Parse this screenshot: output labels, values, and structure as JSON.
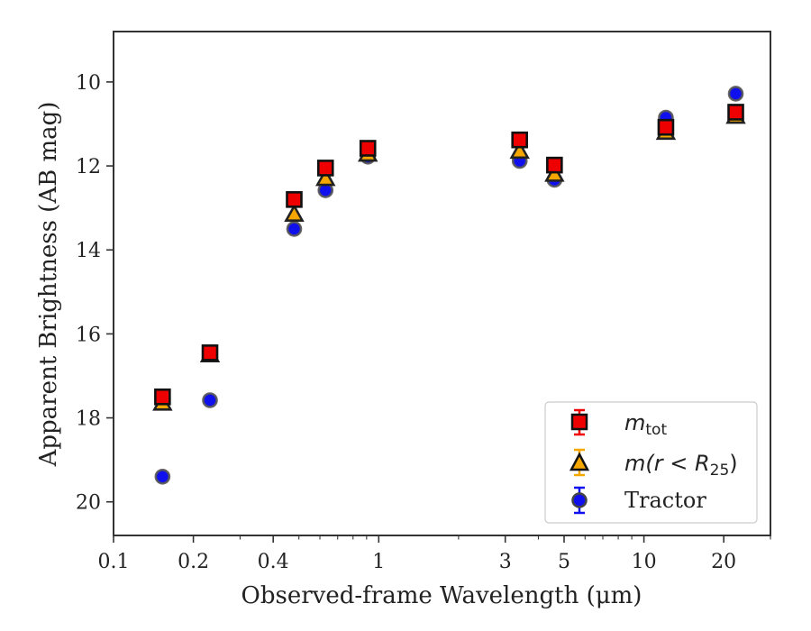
{
  "chart_data": {
    "type": "scatter",
    "title": "",
    "xlabel": "Observed-frame Wavelength (μm)",
    "ylabel": "Apparent Brightness (AB mag)",
    "xscale": "log",
    "xlim": [
      0.1,
      30
    ],
    "ylim": [
      20.8,
      8.8
    ],
    "y_inverted": true,
    "x_ticks": [
      0.1,
      0.2,
      0.4,
      1,
      3,
      5,
      10,
      20
    ],
    "x_tick_labels": [
      "0.1",
      "0.2",
      "0.4",
      "1",
      "3",
      "5",
      "10",
      "20"
    ],
    "y_ticks": [
      10,
      12,
      14,
      16,
      18,
      20
    ],
    "y_tick_labels": [
      "10",
      "12",
      "14",
      "16",
      "18",
      "20"
    ],
    "grid": false,
    "legend_position": "lower-right",
    "series": [
      {
        "name": "m_tot",
        "marker": "square",
        "color": "#ee0000",
        "x": [
          0.153,
          0.231,
          0.48,
          0.63,
          0.91,
          3.4,
          4.6,
          12.1,
          22.2
        ],
        "y": [
          17.5,
          16.45,
          12.8,
          12.05,
          11.58,
          11.38,
          11.98,
          11.08,
          10.72
        ]
      },
      {
        "name": "m(r < R25)",
        "marker": "triangle",
        "color": "#f5a700",
        "x": [
          0.153,
          0.231,
          0.48,
          0.63,
          0.91,
          3.4,
          4.6,
          12.1,
          22.2
        ],
        "y": [
          17.65,
          16.5,
          13.15,
          12.3,
          11.72,
          11.65,
          12.2,
          11.2,
          10.82
        ]
      },
      {
        "name": "Tractor",
        "marker": "circle",
        "color": "#1010ee",
        "x": [
          0.153,
          0.231,
          0.48,
          0.63,
          0.91,
          3.4,
          4.6,
          12.1,
          22.2
        ],
        "y": [
          19.4,
          17.58,
          13.5,
          12.58,
          11.78,
          11.88,
          12.33,
          10.85,
          10.28
        ]
      }
    ]
  },
  "legend": {
    "item1_main": "m",
    "item1_sub": "tot",
    "item2_pre": "m(r < R",
    "item2_sub": "25",
    "item2_post": ")",
    "item3": "Tractor"
  }
}
